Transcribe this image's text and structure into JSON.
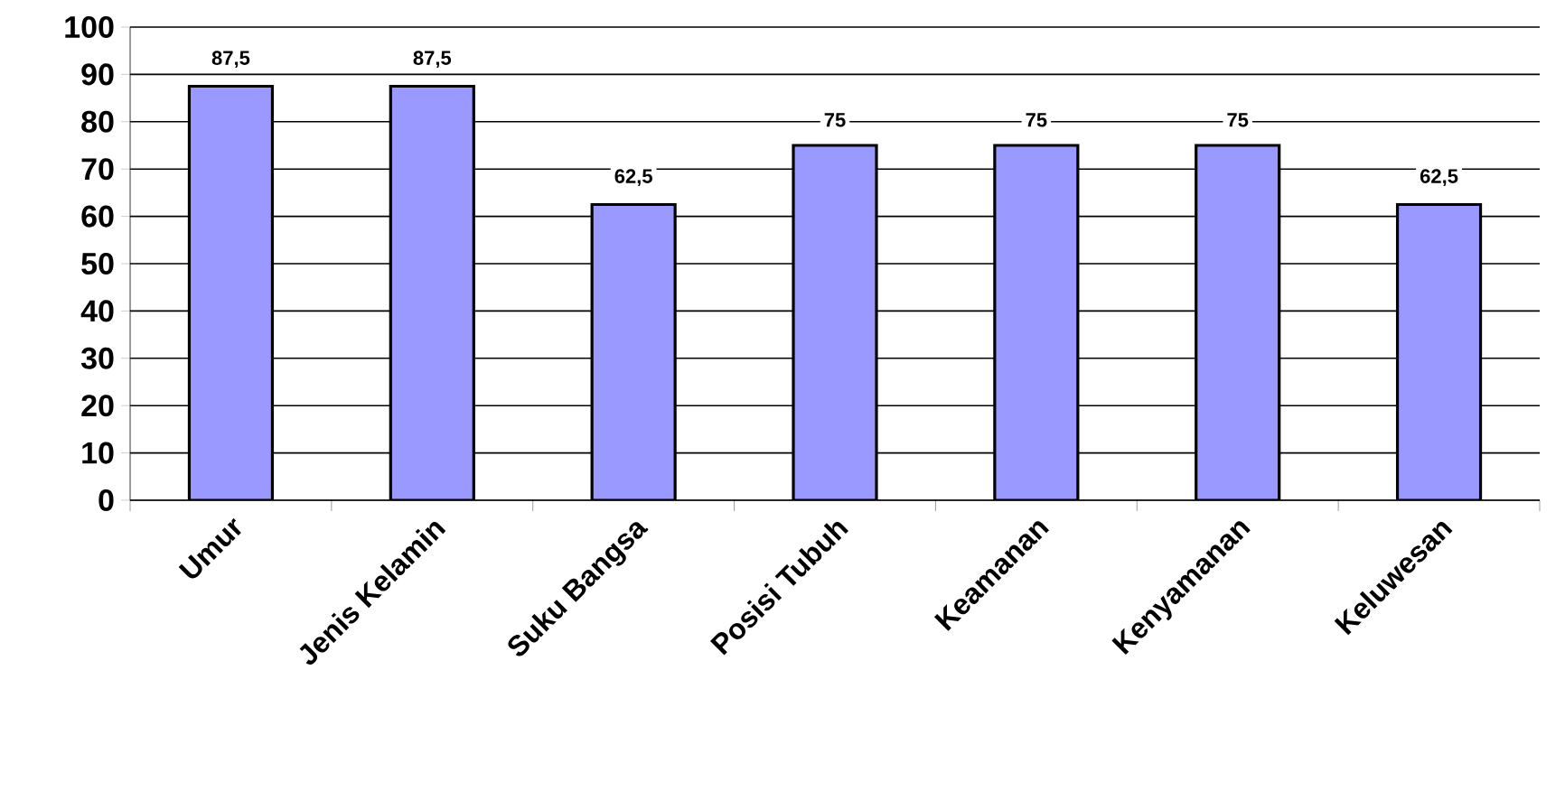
{
  "chart_data": {
    "type": "bar",
    "categories": [
      "Umur",
      "Jenis Kelamin",
      "Suku Bangsa",
      "Posisi Tubuh",
      "Keamanan",
      "Kenyamanan",
      "Keluwesan"
    ],
    "values": [
      87.5,
      87.5,
      62.5,
      75,
      75,
      75,
      62.5
    ],
    "value_labels": [
      "87,5",
      "87,5",
      "62,5",
      "75",
      "75",
      "75",
      "62,5"
    ],
    "color": "#9999ff",
    "ylim": [
      0,
      100
    ],
    "yticks": [
      0,
      10,
      20,
      30,
      40,
      50,
      60,
      70,
      80,
      90,
      100
    ],
    "grid": "y"
  }
}
